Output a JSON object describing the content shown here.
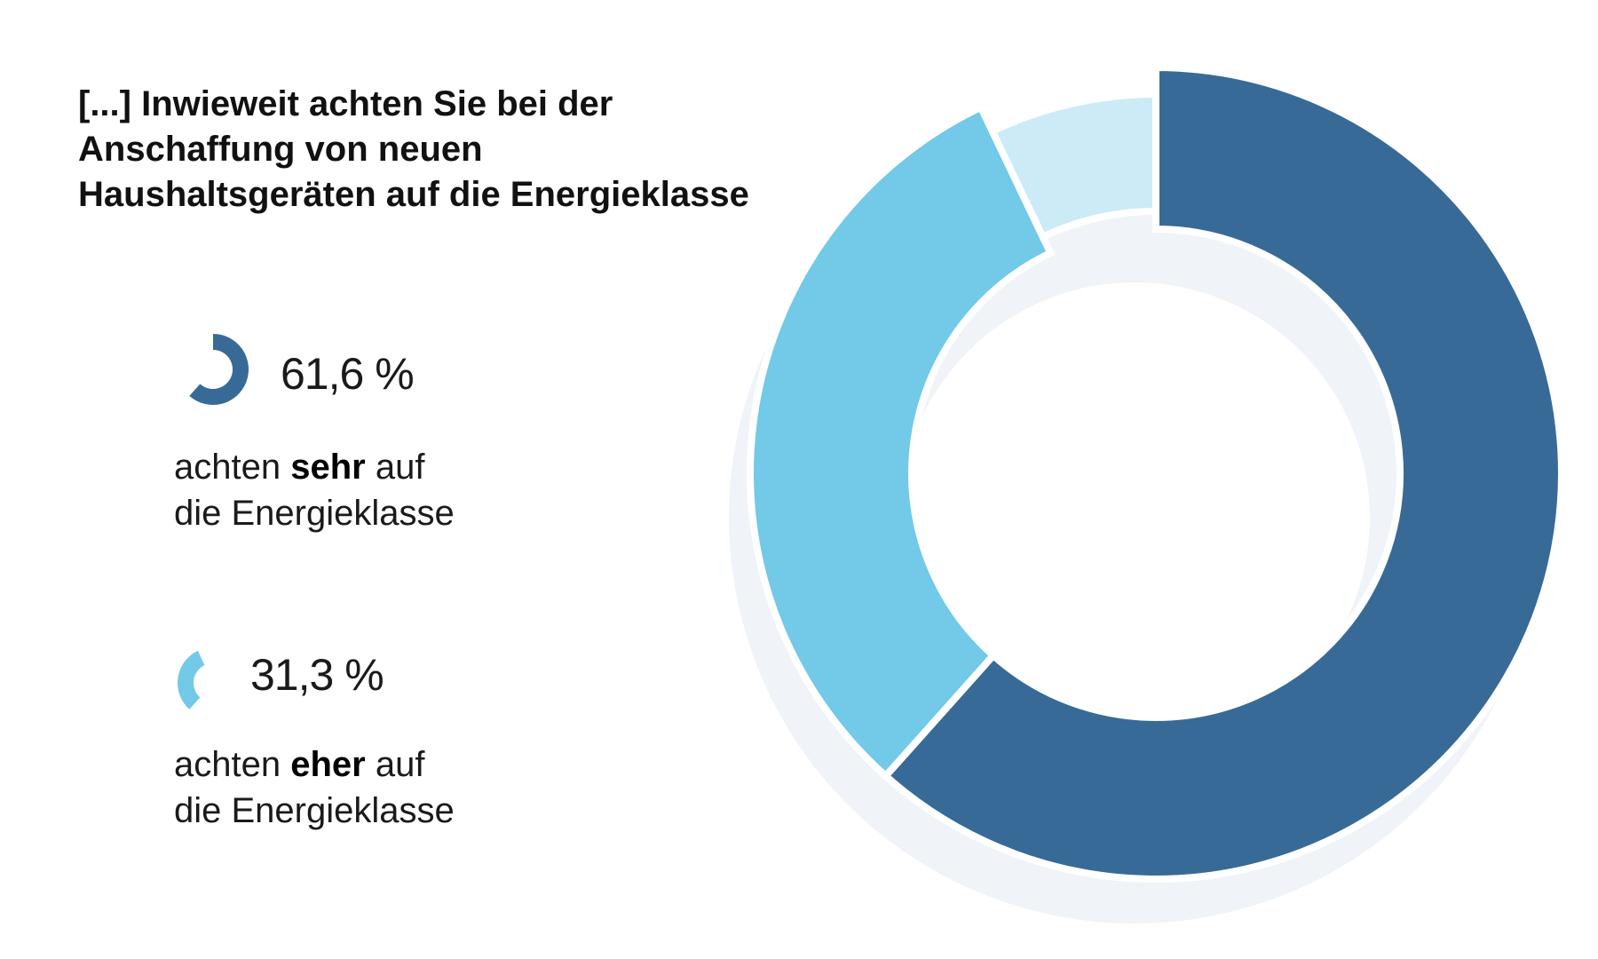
{
  "title": {
    "line1": "[...] Inwieweit achten Sie bei der",
    "line2": "Anschaffung von neuen",
    "line3": "Haushaltsgeräten auf die Energieklasse"
  },
  "legend": [
    {
      "percent_label": "61,6 %",
      "desc_pre": "achten ",
      "desc_bold": "sehr",
      "desc_post": " auf",
      "desc_line2": "die Energieklasse"
    },
    {
      "percent_label": "31,3 %",
      "desc_pre": "achten ",
      "desc_bold": "eher",
      "desc_post": " auf",
      "desc_line2": "die Energieklasse"
    }
  ],
  "colors": {
    "sehr": "#386a98",
    "eher": "#72c9e8",
    "rest": "#cdebf7",
    "shadow": "#f0f4f8"
  },
  "chart_data": {
    "type": "pie",
    "variant": "donut",
    "categories": [
      "achten sehr auf die Energieklasse",
      "achten eher auf die Energieklasse",
      ""
    ],
    "values": [
      61.6,
      31.3,
      7.1
    ],
    "unit": "%"
  }
}
